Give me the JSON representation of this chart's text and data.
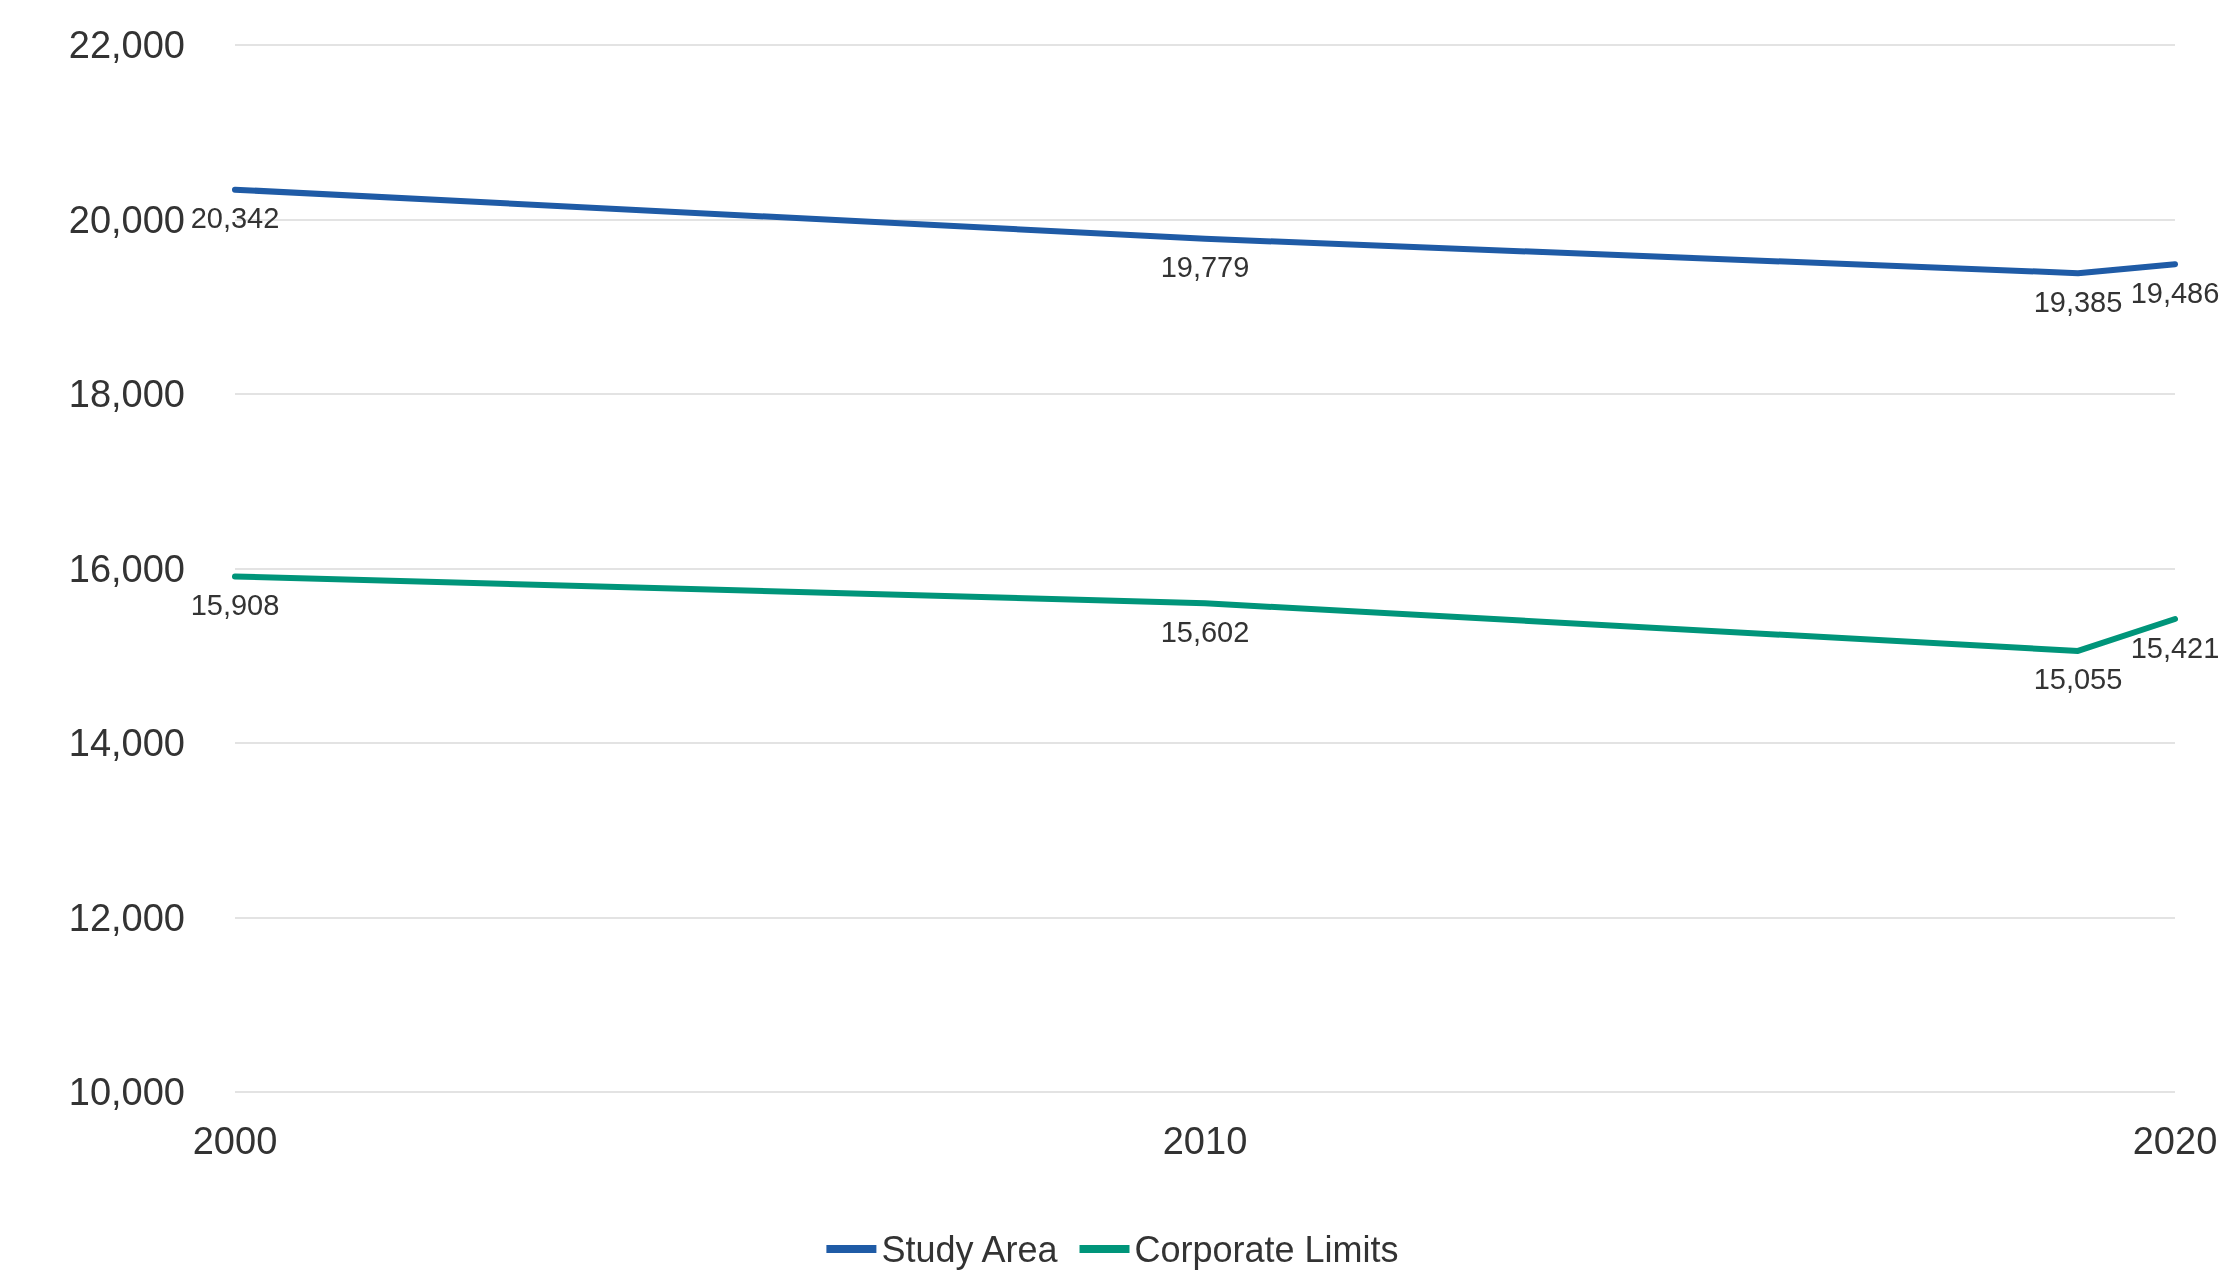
{
  "chart_data": {
    "type": "line",
    "x": [
      2000,
      2010,
      2019,
      2020
    ],
    "series": [
      {
        "name": "Study Area",
        "color": "#1f5ba6",
        "values": [
          20342,
          19779,
          19385,
          19486
        ],
        "value_labels": [
          "20,342",
          "19,779",
          "19,385",
          "19,486"
        ]
      },
      {
        "name": "Corporate Limits",
        "color": "#00957a",
        "values": [
          15908,
          15602,
          15055,
          15421
        ],
        "value_labels": [
          "15,908",
          "15,602",
          "15,055",
          "15,421"
        ]
      }
    ],
    "xlim": [
      2000,
      2020
    ],
    "xticks": [
      2000,
      2010,
      2020
    ],
    "ylim": [
      10000,
      22000
    ],
    "yticks": [
      {
        "value": 10000,
        "label": "10,000"
      },
      {
        "value": 12000,
        "label": "12,000"
      },
      {
        "value": 14000,
        "label": "14,000"
      },
      {
        "value": 16000,
        "label": "16,000"
      },
      {
        "value": 18000,
        "label": "18,000"
      },
      {
        "value": 20000,
        "label": "20,000"
      },
      {
        "value": 22000,
        "label": "22,000"
      }
    ],
    "grid": "y",
    "legend": "bottom",
    "marker": "none",
    "line_style": "solid"
  }
}
